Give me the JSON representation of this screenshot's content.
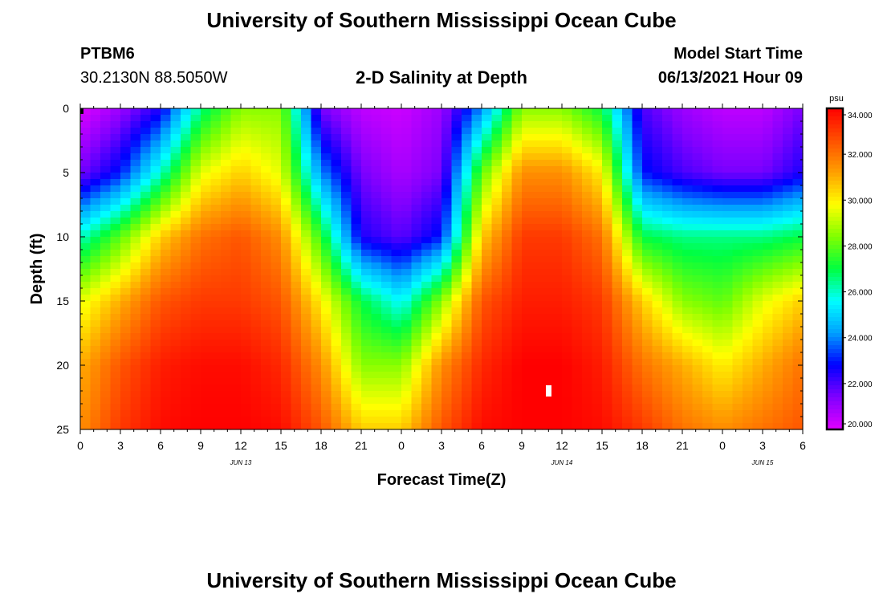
{
  "header": {
    "title": "University of Southern Mississippi Ocean Cube",
    "station_id": "PTBM6",
    "coordinates": "30.2130N  88.5050W",
    "plot_title": "2-D Salinity at Depth",
    "model_start_label": "Model Start Time",
    "model_start_value": "06/13/2021 Hour 09"
  },
  "footer": {
    "title": "University of Southern Mississippi Ocean Cube"
  },
  "chart_data": {
    "type": "heatmap",
    "title": "2-D Salinity at Depth",
    "xlabel": "Forecast Time(Z)",
    "ylabel": "Depth (ft)",
    "x_ticks": [
      "0",
      "3",
      "6",
      "9",
      "12",
      "15",
      "18",
      "21",
      "0",
      "3",
      "6",
      "9",
      "12",
      "15",
      "18",
      "21",
      "0",
      "3",
      "6"
    ],
    "x_hours": [
      0,
      3,
      6,
      9,
      12,
      15,
      18,
      21,
      24,
      27,
      30,
      33,
      36,
      39,
      42,
      45,
      48,
      51,
      54
    ],
    "xlim": [
      0,
      54
    ],
    "date_labels": [
      {
        "hour": 12,
        "label": "JUN 13"
      },
      {
        "hour": 36,
        "label": "JUN 14"
      },
      {
        "hour": 51,
        "label": "JUN 15"
      }
    ],
    "y_ticks": [
      0,
      5,
      10,
      15,
      20,
      25
    ],
    "ylim": [
      0,
      25
    ],
    "depth_axis": "inverted",
    "colorbar": {
      "unit": "psu",
      "min": 20.0,
      "max": 34.0,
      "tick_labels": [
        "20.000",
        "22.000",
        "24.000",
        "26.000",
        "28.000",
        "30.000",
        "32.000",
        "34.000"
      ],
      "tick_values": [
        20,
        22,
        24,
        26,
        28,
        30,
        32,
        34
      ],
      "colors": [
        "#e000ff",
        "#8000ff",
        "#0000ff",
        "#00a0ff",
        "#00ffff",
        "#00ff40",
        "#80ff00",
        "#ffff00",
        "#ffa000",
        "#ff5000",
        "#ff0000"
      ]
    },
    "time_columns_hours": [
      0,
      3,
      6,
      9,
      12,
      15,
      18,
      21,
      24,
      27,
      30,
      33,
      36,
      39,
      42,
      45,
      48,
      51,
      54
    ],
    "depth_rows_ft": [
      0,
      5,
      10,
      15,
      20,
      25
    ],
    "salinity_psu": [
      [
        20.0,
        21.0,
        22.5,
        26.5,
        28.5,
        28.5,
        21.5,
        20.5,
        20.3,
        21.0,
        24.0,
        28.5,
        28.5,
        27.0,
        22.0,
        21.0,
        20.5,
        20.5,
        21.5
      ],
      [
        21.5,
        23.0,
        26.0,
        29.5,
        30.5,
        29.5,
        24.0,
        21.5,
        20.8,
        21.5,
        28.0,
        31.5,
        31.5,
        30.0,
        23.0,
        22.0,
        21.5,
        21.5,
        22.5
      ],
      [
        26.0,
        28.0,
        30.5,
        32.0,
        32.5,
        31.5,
        27.5,
        22.5,
        21.8,
        23.0,
        30.5,
        33.0,
        33.0,
        32.0,
        27.0,
        26.5,
        26.5,
        26.5,
        27.0
      ],
      [
        29.5,
        31.0,
        32.5,
        33.0,
        33.0,
        32.5,
        30.0,
        27.0,
        25.5,
        28.5,
        32.5,
        33.5,
        33.5,
        33.0,
        30.5,
        28.5,
        28.0,
        29.5,
        30.5
      ],
      [
        31.0,
        32.5,
        33.5,
        33.8,
        33.8,
        33.3,
        31.5,
        28.5,
        28.5,
        31.5,
        33.3,
        34.0,
        34.0,
        33.5,
        32.0,
        31.0,
        30.0,
        31.0,
        32.0
      ],
      [
        31.5,
        33.0,
        33.8,
        34.0,
        34.0,
        33.8,
        32.5,
        30.5,
        30.5,
        32.5,
        33.8,
        34.0,
        34.0,
        33.8,
        33.0,
        32.0,
        31.5,
        32.0,
        32.5
      ]
    ]
  }
}
